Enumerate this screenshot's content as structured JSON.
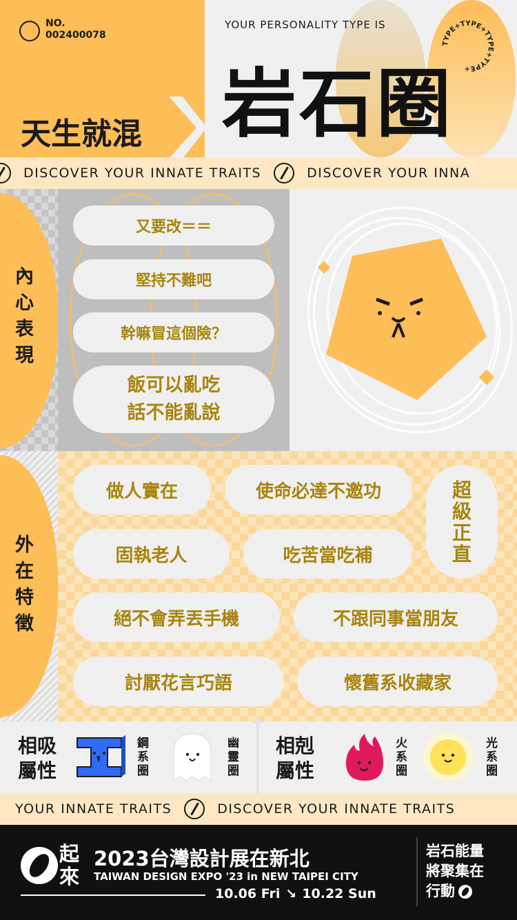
{
  "header": {
    "no_label": "NO.",
    "no_value": "002400078",
    "subtitle": "YOUR PERSONALITY TYPE IS",
    "type_name": "岩石圈",
    "tagline": "天生就混",
    "badge_text": "TYPE+TYPE+TYPE+TYPE+"
  },
  "marquee_top": {
    "text1": "DISCOVER YOUR INNATE TRAITS",
    "text2": "DISCOVER YOUR INNA"
  },
  "inner": {
    "label": [
      "內",
      "心",
      "表",
      "現"
    ],
    "quotes": [
      "又要改＝＝",
      "堅持不難吧",
      "幹嘛冒這個險？",
      "飯可以亂吃",
      "話不能亂說"
    ]
  },
  "outer": {
    "label": [
      "外",
      "在",
      "特",
      "徵"
    ],
    "traits": [
      "做人實在",
      "使命必達不邀功",
      "固執老人",
      "吃苦當吃補",
      "絕不會弄丟手機",
      "不跟同事當朋友",
      "討厭花言巧語",
      "懷舊系收藏家"
    ],
    "vertical_trait": [
      "超",
      "級",
      "正",
      "直"
    ]
  },
  "compat": {
    "attract_label": [
      "相吸",
      "屬性"
    ],
    "attract_types": [
      [
        "鋼",
        "系",
        "圈"
      ],
      [
        "幽",
        "靈",
        "圈"
      ]
    ],
    "repel_label": [
      "相剋",
      "屬性"
    ],
    "repel_types": [
      [
        "火",
        "系",
        "圈"
      ],
      [
        "光",
        "系",
        "圈"
      ]
    ]
  },
  "marquee_bottom": {
    "text1": "YOUR INNATE TRAITS",
    "text2": "DISCOVER YOUR INNATE TRAITS"
  },
  "footer": {
    "logo_text": [
      "起",
      "來"
    ],
    "title": "2023台灣設計展在新北",
    "subtitle": "TAIWAN DESIGN EXPO '23 in NEW TAIPEI CITY",
    "date_start": "10.06 Fri",
    "arrow": "↘",
    "date_end": "10.22 Sun",
    "right_text": [
      "岩石能量",
      "將聚集在",
      "行動"
    ]
  },
  "colors": {
    "yellow": "#fdbd57",
    "gold_text": "#a8840d",
    "dark": "#1a1a1a",
    "blue": "#2f6cf5",
    "magenta": "#e0195e"
  }
}
